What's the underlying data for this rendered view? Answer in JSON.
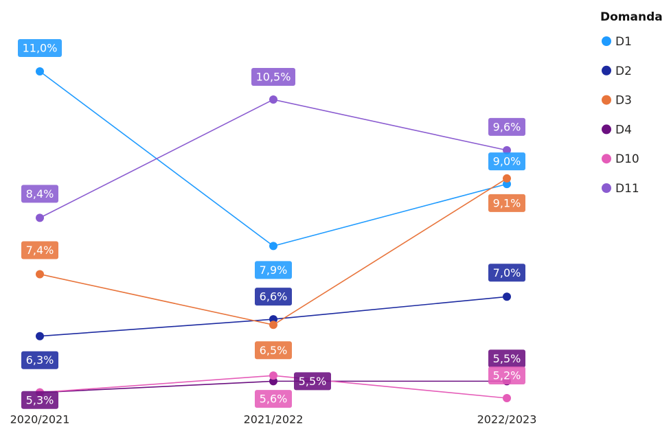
{
  "chart_data": {
    "type": "line",
    "categories": [
      "2020/2021",
      "2021/2022",
      "2022/2023"
    ],
    "legend_title": "Domanda",
    "legend": "right",
    "series": [
      {
        "name": "D1",
        "color": "#1f9bff",
        "values": [
          11.0,
          7.9,
          9.0
        ],
        "value_labels": [
          "11,0%",
          "7,9%",
          "9,0%"
        ]
      },
      {
        "name": "D2",
        "color": "#1c2aa0",
        "values": [
          6.3,
          6.6,
          7.0
        ],
        "value_labels": [
          "6,3%",
          "6,6%",
          "7,0%"
        ]
      },
      {
        "name": "D3",
        "color": "#e8743b",
        "values": [
          7.4,
          6.5,
          9.1
        ],
        "value_labels": [
          "7,4%",
          "6,5%",
          "9,1%"
        ]
      },
      {
        "name": "D4",
        "color": "#6b0f80",
        "values": [
          5.3,
          5.5,
          5.5
        ],
        "value_labels": [
          "5,3%",
          "5,5%",
          "5,5%"
        ]
      },
      {
        "name": "D10",
        "color": "#e55cb8",
        "values": [
          5.3,
          5.6,
          5.2
        ],
        "value_labels": [
          null,
          "5,6%",
          "5,2%"
        ]
      },
      {
        "name": "D11",
        "color": "#8a5bd0",
        "values": [
          8.4,
          10.5,
          9.6
        ],
        "value_labels": [
          "8,4%",
          "10,5%",
          "9,6%"
        ]
      }
    ]
  }
}
